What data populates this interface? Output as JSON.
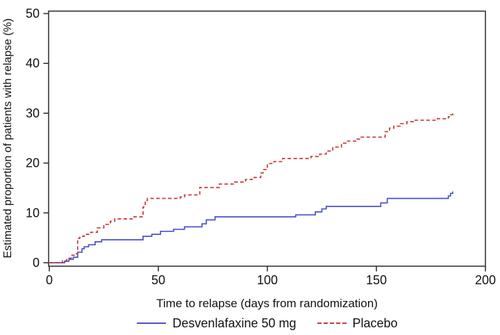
{
  "chart_data": {
    "type": "line",
    "subtype": "kaplan-meier-step",
    "title": "",
    "xlabel": "Time to relapse (days from randomization)",
    "ylabel": "Estimated proportion of patients with relapse (%)",
    "xlim": [
      0,
      200
    ],
    "ylim": [
      0,
      50
    ],
    "x_ticks": [
      0,
      50,
      100,
      150,
      200
    ],
    "y_ticks": [
      0,
      10,
      20,
      30,
      40,
      50
    ],
    "grid": false,
    "legend_position": "bottom",
    "frame_color": "#4d4d4d",
    "tick_color": "#333333",
    "series": [
      {
        "name": "Desvenlafaxine 50 mg",
        "color": "#4d4fd0",
        "style": "solid",
        "step": true,
        "points": [
          [
            0,
            0
          ],
          [
            7,
            0.3
          ],
          [
            9,
            0.7
          ],
          [
            11,
            1.1
          ],
          [
            13,
            2.1
          ],
          [
            15,
            2.8
          ],
          [
            16,
            3.2
          ],
          [
            18,
            3.6
          ],
          [
            21,
            4.2
          ],
          [
            24,
            4.6
          ],
          [
            43,
            5.3
          ],
          [
            47,
            5.7
          ],
          [
            51,
            6.3
          ],
          [
            57,
            6.7
          ],
          [
            62,
            7.2
          ],
          [
            70,
            7.8
          ],
          [
            72,
            8.6
          ],
          [
            76,
            9.2
          ],
          [
            113,
            9.6
          ],
          [
            122,
            10.2
          ],
          [
            125,
            10.8
          ],
          [
            127,
            11.3
          ],
          [
            152,
            12.0
          ],
          [
            155,
            12.9
          ],
          [
            183,
            13.4
          ],
          [
            184,
            13.9
          ],
          [
            185,
            14.3
          ]
        ]
      },
      {
        "name": "Placebo",
        "color": "#ca3737",
        "style": "dashed",
        "step": true,
        "points": [
          [
            0,
            0
          ],
          [
            6,
            0.4
          ],
          [
            8,
            0.9
          ],
          [
            10,
            1.5
          ],
          [
            12,
            1.8
          ],
          [
            13,
            4.9
          ],
          [
            14,
            5.3
          ],
          [
            16,
            5.7
          ],
          [
            19,
            6.1
          ],
          [
            22,
            7.0
          ],
          [
            25,
            7.7
          ],
          [
            28,
            8.3
          ],
          [
            30,
            8.8
          ],
          [
            38,
            9.2
          ],
          [
            43,
            11.2
          ],
          [
            44,
            12.5
          ],
          [
            45,
            12.9
          ],
          [
            60,
            13.2
          ],
          [
            62,
            13.6
          ],
          [
            69,
            15.1
          ],
          [
            78,
            15.8
          ],
          [
            85,
            16.2
          ],
          [
            90,
            16.7
          ],
          [
            93,
            17.1
          ],
          [
            97,
            18.0
          ],
          [
            98,
            18.7
          ],
          [
            100,
            19.9
          ],
          [
            103,
            20.3
          ],
          [
            107,
            20.9
          ],
          [
            120,
            21.3
          ],
          [
            124,
            21.8
          ],
          [
            127,
            22.4
          ],
          [
            130,
            23.2
          ],
          [
            134,
            24.0
          ],
          [
            136,
            24.4
          ],
          [
            141,
            24.8
          ],
          [
            143,
            25.2
          ],
          [
            154,
            26.3
          ],
          [
            156,
            27.0
          ],
          [
            158,
            27.4
          ],
          [
            161,
            27.9
          ],
          [
            164,
            28.3
          ],
          [
            167,
            28.6
          ],
          [
            178,
            28.9
          ],
          [
            183,
            29.3
          ],
          [
            184,
            29.7
          ],
          [
            185,
            30.0
          ]
        ]
      }
    ]
  }
}
